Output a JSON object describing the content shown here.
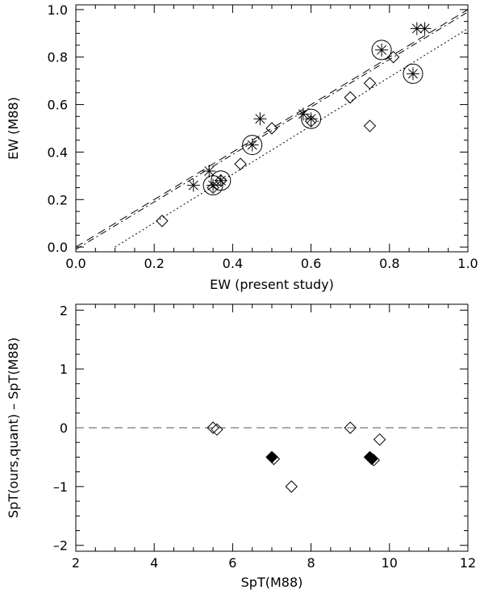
{
  "chart_data": [
    {
      "type": "scatter",
      "title": "",
      "xlabel": "EW (present study)",
      "ylabel": "EW (M88)",
      "xlim": [
        0.0,
        1.0
      ],
      "ylim": [
        -0.02,
        1.02
      ],
      "x_ticks": [
        "0.0",
        "0.2",
        "0.4",
        "0.6",
        "0.8",
        "1.0"
      ],
      "y_ticks": [
        "0.0",
        "0.2",
        "0.4",
        "0.6",
        "0.8",
        "1.0"
      ],
      "grid": false,
      "legend": "none",
      "series": [
        {
          "marker": "diamond",
          "points": [
            [
              0.22,
              0.11
            ],
            [
              0.35,
              0.25
            ],
            [
              0.37,
              0.28
            ],
            [
              0.42,
              0.35
            ],
            [
              0.5,
              0.5
            ],
            [
              0.6,
              0.53
            ],
            [
              0.7,
              0.63
            ],
            [
              0.75,
              0.69
            ],
            [
              0.75,
              0.51
            ],
            [
              0.81,
              0.8
            ]
          ]
        },
        {
          "marker": "asterisk",
          "points": [
            [
              0.3,
              0.26
            ],
            [
              0.34,
              0.32
            ],
            [
              0.47,
              0.54
            ],
            [
              0.58,
              0.56
            ],
            [
              0.87,
              0.92
            ],
            [
              0.89,
              0.92
            ]
          ]
        },
        {
          "marker": "circled-asterisk",
          "points": [
            [
              0.35,
              0.26
            ],
            [
              0.37,
              0.28
            ],
            [
              0.45,
              0.43
            ],
            [
              0.6,
              0.54
            ],
            [
              0.78,
              0.83
            ],
            [
              0.86,
              0.73
            ]
          ]
        }
      ],
      "lines": [
        {
          "style": "dashed",
          "points": [
            [
              0.0,
              0.0
            ],
            [
              1.0,
              1.0
            ]
          ]
        },
        {
          "style": "dash-dot",
          "points": [
            [
              0.0,
              -0.01
            ],
            [
              1.0,
              0.99
            ]
          ]
        },
        {
          "style": "dotted",
          "points": [
            [
              0.1,
              0.0
            ],
            [
              1.0,
              0.92
            ]
          ]
        }
      ]
    },
    {
      "type": "scatter",
      "title": "",
      "xlabel": "SpT(M88)",
      "ylabel": "SpT(ours,quant) – SpT(M88)",
      "xlim": [
        2,
        12
      ],
      "ylim": [
        -2.1,
        2.1
      ],
      "x_ticks": [
        "2",
        "4",
        "6",
        "8",
        "10",
        "12"
      ],
      "y_ticks": [
        "–2",
        "–1",
        "0",
        "1",
        "2"
      ],
      "grid": false,
      "legend": "none",
      "series": [
        {
          "marker": "diamond",
          "points": [
            [
              5.5,
              0.0
            ],
            [
              5.6,
              -0.03
            ],
            [
              7.05,
              -0.53
            ],
            [
              7.5,
              -1.0
            ],
            [
              9.0,
              0.0
            ],
            [
              9.75,
              -0.2
            ],
            [
              9.6,
              -0.55
            ]
          ]
        },
        {
          "marker": "filled-diamond",
          "points": [
            [
              7.0,
              -0.5
            ],
            [
              9.5,
              -0.5
            ],
            [
              9.55,
              -0.53
            ]
          ]
        }
      ],
      "lines": [
        {
          "style": "dashed",
          "points": [
            [
              2,
              0
            ],
            [
              12,
              0
            ]
          ]
        }
      ]
    }
  ]
}
